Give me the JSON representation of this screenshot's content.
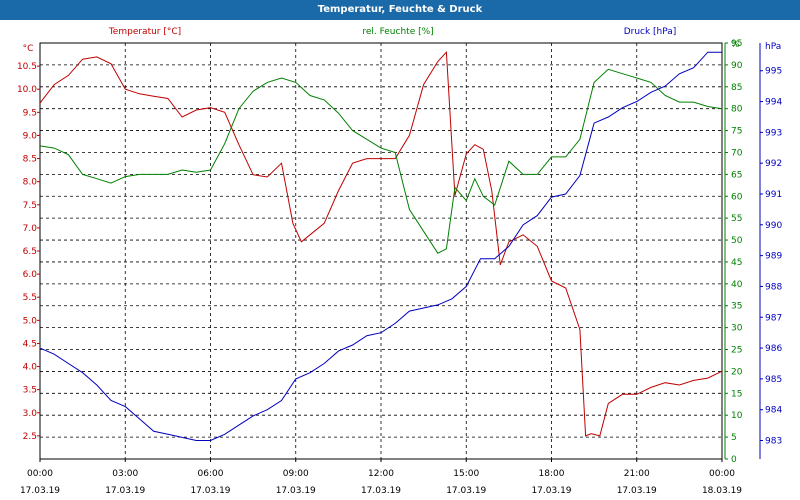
{
  "window": {
    "title": "Temperatur, Feuchte & Druck"
  },
  "chart_data": {
    "type": "line",
    "title": "Temperatur, Feuchte & Druck",
    "colors": {
      "temperature": "#c00000",
      "humidity": "#008000",
      "pressure": "#0000c0",
      "titlebar": "#1a6aaa"
    },
    "x_ticks": [
      {
        "time": "00:00",
        "date": "17.03.19"
      },
      {
        "time": "03:00",
        "date": "17.03.19"
      },
      {
        "time": "06:00",
        "date": "17.03.19"
      },
      {
        "time": "09:00",
        "date": "17.03.19"
      },
      {
        "time": "12:00",
        "date": "17.03.19"
      },
      {
        "time": "15:00",
        "date": "17.03.19"
      },
      {
        "time": "18:00",
        "date": "17.03.19"
      },
      {
        "time": "21:00",
        "date": "17.03.19"
      },
      {
        "time": "00:00",
        "date": "18.03.19"
      }
    ],
    "x_range_hours": [
      0,
      24
    ],
    "grid": true,
    "axes": {
      "temperature": {
        "label": "Temperatur [°C]",
        "unit": "°C",
        "range": [
          2.0,
          11.0
        ],
        "ticks": [
          "2.5",
          "3.0",
          "3.5",
          "4.0",
          "4.5",
          "5.0",
          "5.5",
          "6.0",
          "6.5",
          "7.0",
          "7.5",
          "8.0",
          "8.5",
          "9.0",
          "9.5",
          "10.0",
          "10.5"
        ]
      },
      "humidity": {
        "label": "rel. Feuchte [%]",
        "unit": "%",
        "range": [
          0,
          95
        ],
        "ticks": [
          "0",
          "5",
          "10",
          "15",
          "20",
          "25",
          "30",
          "35",
          "40",
          "45",
          "50",
          "55",
          "60",
          "65",
          "70",
          "75",
          "80",
          "85",
          "90",
          "95"
        ]
      },
      "pressure": {
        "label": "Druck [hPa]",
        "unit": "hPa",
        "range": [
          982.4,
          995.9
        ],
        "ticks": [
          "983",
          "984",
          "985",
          "986",
          "987",
          "988",
          "989",
          "990",
          "991",
          "992",
          "993",
          "994",
          "995"
        ]
      }
    },
    "series": [
      {
        "name": "Temperatur [°C]",
        "axis": "temperature",
        "x": [
          0,
          0.5,
          1,
          1.5,
          2,
          2.5,
          3,
          3.5,
          4,
          4.5,
          5,
          5.5,
          6,
          6.5,
          7,
          7.5,
          8,
          8.5,
          8.9,
          9.2,
          9.5,
          10,
          10.5,
          11,
          11.5,
          12,
          12.5,
          13,
          13.5,
          14,
          14.3,
          14.6,
          15,
          15.3,
          15.6,
          15.9,
          16.2,
          16.5,
          17,
          17.5,
          18,
          18.5,
          19,
          19.2,
          19.4,
          19.7,
          20,
          20.5,
          21,
          21.5,
          22,
          22.5,
          23,
          23.5,
          24
        ],
        "values": [
          9.7,
          10.1,
          10.3,
          10.65,
          10.7,
          10.55,
          10.0,
          9.9,
          9.85,
          9.8,
          9.4,
          9.55,
          9.6,
          9.5,
          8.8,
          8.15,
          8.1,
          8.4,
          7.1,
          6.7,
          6.85,
          7.1,
          7.8,
          8.4,
          8.5,
          8.5,
          8.5,
          9.0,
          10.1,
          10.6,
          10.8,
          7.7,
          8.6,
          8.8,
          8.7,
          7.8,
          6.2,
          6.7,
          6.85,
          6.6,
          5.85,
          5.7,
          4.8,
          2.5,
          2.55,
          2.5,
          3.2,
          3.4,
          3.4,
          3.55,
          3.65,
          3.6,
          3.7,
          3.75,
          3.9
        ]
      },
      {
        "name": "rel. Feuchte [%]",
        "axis": "humidity",
        "x": [
          0,
          0.5,
          1,
          1.5,
          2,
          2.5,
          3,
          3.5,
          4,
          4.5,
          5,
          5.5,
          6,
          6.5,
          7,
          7.5,
          8,
          8.5,
          9,
          9.5,
          10,
          10.5,
          11,
          11.5,
          12,
          12.5,
          13,
          13.5,
          14,
          14.3,
          14.6,
          15,
          15.3,
          15.6,
          16,
          16.5,
          17,
          17.5,
          18,
          18.5,
          19,
          19.5,
          20,
          20.5,
          21,
          21.5,
          22,
          22.5,
          23,
          23.5,
          24
        ],
        "values": [
          71.5,
          71,
          69.5,
          65,
          64,
          63,
          64.5,
          65,
          65,
          65,
          66,
          65.5,
          66,
          72,
          80,
          84,
          86,
          87,
          86,
          83,
          82,
          79,
          75,
          73,
          71,
          70,
          57,
          52,
          47,
          48,
          62,
          59,
          64,
          60,
          58,
          68,
          65,
          65,
          69,
          69,
          73,
          86,
          89,
          88,
          87,
          86,
          83,
          81.5,
          81.5,
          80.5,
          80
        ]
      },
      {
        "name": "Druck [hPa]",
        "axis": "pressure",
        "x": [
          0,
          0.5,
          1,
          1.5,
          2,
          2.5,
          3,
          3.5,
          4,
          4.5,
          5,
          5.5,
          6,
          6.5,
          7,
          7.5,
          8,
          8.5,
          9,
          9.5,
          10,
          10.5,
          11,
          11.5,
          12,
          12.5,
          13,
          13.5,
          14,
          14.5,
          15,
          15.5,
          16,
          16.5,
          17,
          17.5,
          18,
          18.5,
          19,
          19.5,
          20,
          20.5,
          21,
          21.5,
          22,
          22.5,
          23,
          23.5,
          24
        ],
        "values": [
          986.0,
          985.8,
          985.5,
          985.2,
          984.8,
          984.3,
          984.1,
          983.7,
          983.3,
          983.2,
          983.1,
          983.0,
          983.0,
          983.2,
          983.5,
          983.8,
          984.0,
          984.3,
          985.0,
          985.2,
          985.5,
          985.9,
          986.1,
          986.4,
          986.5,
          986.8,
          987.2,
          987.3,
          987.4,
          987.6,
          988.0,
          988.9,
          988.9,
          989.3,
          990.0,
          990.3,
          990.9,
          991.0,
          991.6,
          993.3,
          993.5,
          993.8,
          994.0,
          994.3,
          994.5,
          994.9,
          995.1,
          995.6,
          995.6
        ]
      }
    ]
  }
}
